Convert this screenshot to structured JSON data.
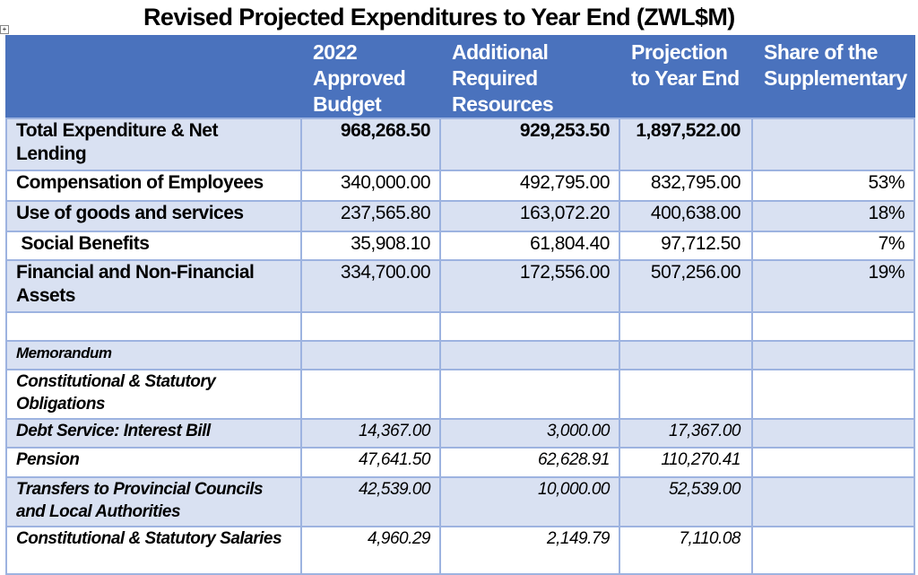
{
  "title": "Revised Projected Expenditures to Year End (ZWL$M)",
  "headers": [
    "",
    "2022 Approved Budget",
    "Additional Required Resources",
    "Projection to Year End",
    "Share of the Supplementary"
  ],
  "main_rows": [
    {
      "label": "Total Expenditure & Net Lending",
      "budget": "968,268.50",
      "additional": "929,253.50",
      "projection": "1,897,522.00",
      "share": ""
    },
    {
      "label": "Compensation of Employees",
      "budget": "340,000.00",
      "additional": "492,795.00",
      "projection": "832,795.00",
      "share": "53%"
    },
    {
      "label": "Use of goods and services",
      "budget": "237,565.80",
      "additional": "163,072.20",
      "projection": "400,638.00",
      "share": "18%"
    },
    {
      "label": " Social Benefits",
      "budget": "35,908.10",
      "additional": "61,804.40",
      "projection": "97,712.50",
      "share": "7%"
    },
    {
      "label": "Financial and Non-Financial Assets",
      "budget": "334,700.00",
      "additional": "172,556.00",
      "projection": "507,256.00",
      "share": "19%"
    }
  ],
  "memo_rows": [
    {
      "label": "Memorandum",
      "budget": "",
      "additional": "",
      "projection": "",
      "share": ""
    },
    {
      "label": "Constitutional & Statutory Obligations",
      "budget": "",
      "additional": "",
      "projection": "",
      "share": ""
    },
    {
      "label": "Debt Service: Interest Bill",
      "budget": "14,367.00",
      "additional": "3,000.00",
      "projection": "17,367.00",
      "share": ""
    },
    {
      "label": "Pension",
      "budget": "47,641.50",
      "additional": "62,628.91",
      "projection": "110,270.41",
      "share": ""
    },
    {
      "label": "Transfers to Provincial Councils and Local Authorities",
      "budget": "42,539.00",
      "additional": "10,000.00",
      "projection": "52,539.00",
      "share": ""
    },
    {
      "label": "Constitutional & Statutory Salaries",
      "budget": "4,960.29",
      "additional": "2,149.79",
      "projection": "7,110.08",
      "share": ""
    }
  ]
}
